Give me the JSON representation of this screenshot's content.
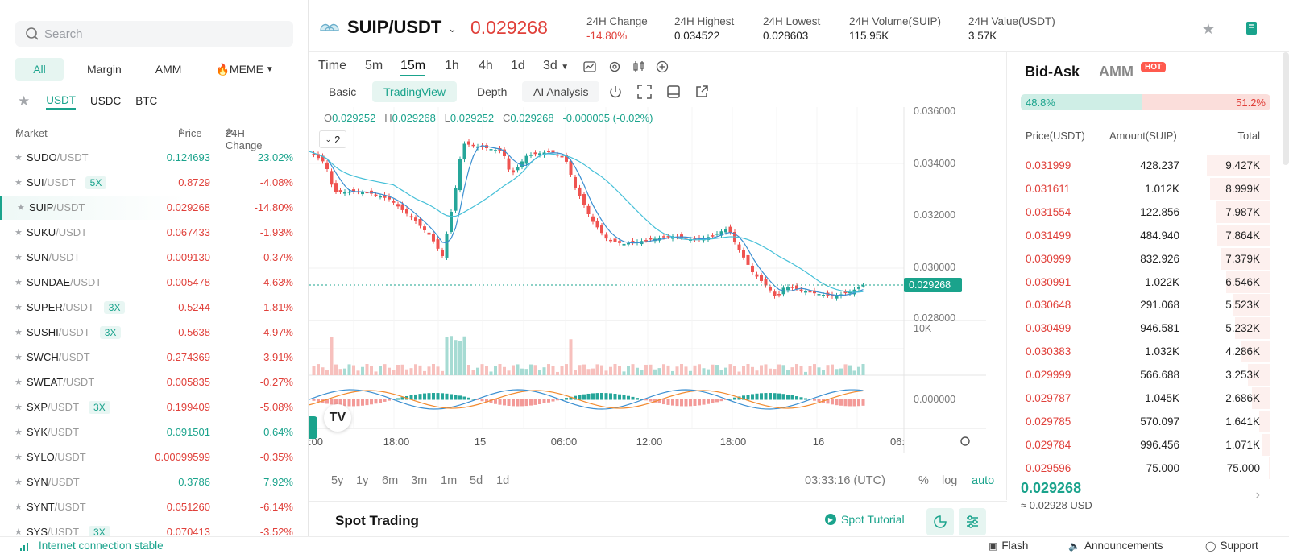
{
  "search": {
    "placeholder": "Search"
  },
  "categories": [
    "All",
    "Margin",
    "AMM",
    "🔥MEME"
  ],
  "quotes": [
    "USDT",
    "USDC",
    "BTC"
  ],
  "market_header": {
    "market": "Market",
    "price": "Price",
    "change": "24H Change"
  },
  "markets": [
    {
      "base": "SUDO",
      "quote": "/USDT",
      "lev": "",
      "price": "0.124693",
      "change": "23.02%",
      "up": true
    },
    {
      "base": "SUI",
      "quote": "/USDT",
      "lev": "5X",
      "price": "0.8729",
      "change": "-4.08%",
      "up": false
    },
    {
      "base": "SUIP",
      "quote": "/USDT",
      "lev": "",
      "price": "0.029268",
      "change": "-14.80%",
      "up": false
    },
    {
      "base": "SUKU",
      "quote": "/USDT",
      "lev": "",
      "price": "0.067433",
      "change": "-1.93%",
      "up": false
    },
    {
      "base": "SUN",
      "quote": "/USDT",
      "lev": "",
      "price": "0.009130",
      "change": "-0.37%",
      "up": false
    },
    {
      "base": "SUNDAE",
      "quote": "/USDT",
      "lev": "",
      "price": "0.005478",
      "change": "-4.63%",
      "up": false
    },
    {
      "base": "SUPER",
      "quote": "/USDT",
      "lev": "3X",
      "price": "0.5244",
      "change": "-1.81%",
      "up": false
    },
    {
      "base": "SUSHI",
      "quote": "/USDT",
      "lev": "3X",
      "price": "0.5638",
      "change": "-4.97%",
      "up": false
    },
    {
      "base": "SWCH",
      "quote": "/USDT",
      "lev": "",
      "price": "0.274369",
      "change": "-3.91%",
      "up": false
    },
    {
      "base": "SWEAT",
      "quote": "/USDT",
      "lev": "",
      "price": "0.005835",
      "change": "-0.27%",
      "up": false
    },
    {
      "base": "SXP",
      "quote": "/USDT",
      "lev": "3X",
      "price": "0.199409",
      "change": "-5.08%",
      "up": false
    },
    {
      "base": "SYK",
      "quote": "/USDT",
      "lev": "",
      "price": "0.091501",
      "change": "0.64%",
      "up": true
    },
    {
      "base": "SYLO",
      "quote": "/USDT",
      "lev": "",
      "price": "0.00099599",
      "change": "-0.35%",
      "up": false
    },
    {
      "base": "SYN",
      "quote": "/USDT",
      "lev": "",
      "price": "0.3786",
      "change": "7.92%",
      "up": true
    },
    {
      "base": "SYNT",
      "quote": "/USDT",
      "lev": "",
      "price": "0.051260",
      "change": "-6.14%",
      "up": false
    },
    {
      "base": "SYS",
      "quote": "/USDT",
      "lev": "3X",
      "price": "0.070413",
      "change": "-3.52%",
      "up": false
    }
  ],
  "header": {
    "pair": "SUIP/USDT",
    "price": "0.029268",
    "stats": [
      {
        "label": "24H Change",
        "value": "-14.80%"
      },
      {
        "label": "24H Highest",
        "value": "0.034522"
      },
      {
        "label": "24H Lowest",
        "value": "0.028603"
      },
      {
        "label": "24H Volume(SUIP)",
        "value": "115.95K"
      },
      {
        "label": "24H Value(USDT)",
        "value": "3.57K"
      }
    ]
  },
  "timeframes": [
    "Time",
    "5m",
    "15m",
    "1h",
    "4h",
    "1d",
    "3d"
  ],
  "views": [
    "Basic",
    "TradingView",
    "Depth",
    "AI Analysis"
  ],
  "ohlc": {
    "o": "0.029252",
    "h": "0.029268",
    "l": "0.029252",
    "c": "0.029268",
    "chg": "-0.000005 (-0.02%)"
  },
  "indicator_count": "2",
  "chart": {
    "y_labels": [
      "0.036000",
      "0.034000",
      "0.032000",
      "0.030000",
      "0.028000"
    ],
    "vol_label": "10K",
    "macd_label": "0.000000",
    "x_labels": [
      ":00",
      "18:00",
      "15",
      "06:00",
      "12:00",
      "18:00",
      "16",
      "06:"
    ],
    "last_tag": "0.029268"
  },
  "ranges": [
    "5y",
    "1y",
    "6m",
    "3m",
    "1m",
    "5d",
    "1d"
  ],
  "clock": "03:33:16 (UTC)",
  "scale_toggles": [
    "%",
    "log",
    "auto"
  ],
  "spot": {
    "title": "Spot Trading",
    "tutorial": "Spot Tutorial"
  },
  "right": {
    "tab1": "Bid-Ask",
    "tab2": "AMM",
    "hot": "HOT",
    "buy_pct": "48.8%",
    "sell_pct": "51.2%",
    "cols": [
      "Price(USDT)",
      "Amount(SUIP)",
      "Total"
    ],
    "asks": [
      {
        "p": "0.031999",
        "a": "428.237",
        "t": "9.427K",
        "d": 100
      },
      {
        "p": "0.031611",
        "a": "1.012K",
        "t": "8.999K",
        "d": 95
      },
      {
        "p": "0.031554",
        "a": "122.856",
        "t": "7.987K",
        "d": 85
      },
      {
        "p": "0.031499",
        "a": "484.940",
        "t": "7.864K",
        "d": 83
      },
      {
        "p": "0.030999",
        "a": "832.926",
        "t": "7.379K",
        "d": 78
      },
      {
        "p": "0.030991",
        "a": "1.022K",
        "t": "6.546K",
        "d": 69
      },
      {
        "p": "0.030648",
        "a": "291.068",
        "t": "5.523K",
        "d": 58
      },
      {
        "p": "0.030499",
        "a": "946.581",
        "t": "5.232K",
        "d": 55
      },
      {
        "p": "0.030383",
        "a": "1.032K",
        "t": "4.286K",
        "d": 45
      },
      {
        "p": "0.029999",
        "a": "566.688",
        "t": "3.253K",
        "d": 34
      },
      {
        "p": "0.029787",
        "a": "1.045K",
        "t": "2.686K",
        "d": 28
      },
      {
        "p": "0.029785",
        "a": "570.097",
        "t": "1.641K",
        "d": 17
      },
      {
        "p": "0.029784",
        "a": "996.456",
        "t": "1.071K",
        "d": 11
      },
      {
        "p": "0.029596",
        "a": "75.000",
        "t": "75.000",
        "d": 1
      }
    ],
    "mid": "0.029268",
    "mid_usd": "≈ 0.02928 USD"
  },
  "footer": {
    "conn": "Internet connection stable",
    "links": [
      "Flash",
      "Announcements",
      "Support"
    ]
  }
}
